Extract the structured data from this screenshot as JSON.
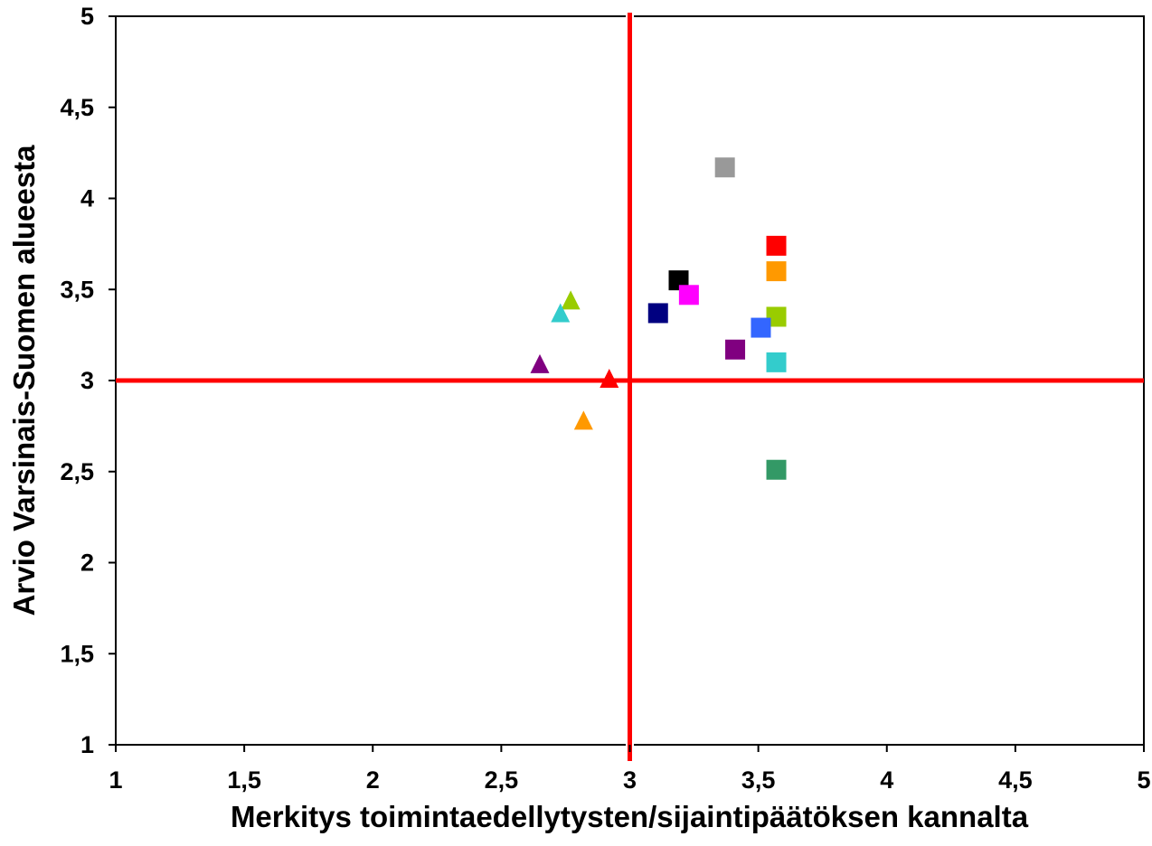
{
  "chart_data": {
    "type": "scatter",
    "title": "",
    "xlabel": "Merkitys toimintaedellytysten/sijaintipäätöksen kannalta",
    "ylabel": "Arvio Varsinais-Suomen alueesta",
    "xlim": [
      1,
      5
    ],
    "ylim": [
      1,
      5
    ],
    "grid": false,
    "legend": "none",
    "x_ticks": [
      {
        "value": 1,
        "label": "1"
      },
      {
        "value": 1.5,
        "label": "1,5"
      },
      {
        "value": 2,
        "label": "2"
      },
      {
        "value": 2.5,
        "label": "2,5"
      },
      {
        "value": 3,
        "label": "3"
      },
      {
        "value": 3.5,
        "label": "3,5"
      },
      {
        "value": 4,
        "label": "4"
      },
      {
        "value": 4.5,
        "label": "4,5"
      },
      {
        "value": 5,
        "label": "5"
      }
    ],
    "y_ticks": [
      {
        "value": 1,
        "label": "1"
      },
      {
        "value": 1.5,
        "label": "1,5"
      },
      {
        "value": 2,
        "label": "2"
      },
      {
        "value": 2.5,
        "label": "2,5"
      },
      {
        "value": 3,
        "label": "3"
      },
      {
        "value": 3.5,
        "label": "3,5"
      },
      {
        "value": 4,
        "label": "4"
      },
      {
        "value": 4.5,
        "label": "4,5"
      },
      {
        "value": 5,
        "label": "5"
      }
    ],
    "reference_lines": {
      "color": "#ff0000",
      "x": 3,
      "y": 3
    },
    "points": [
      {
        "x": 3.37,
        "y": 4.17,
        "shape": "square",
        "color": "#999999"
      },
      {
        "x": 3.57,
        "y": 3.74,
        "shape": "square",
        "color": "#ff0000"
      },
      {
        "x": 3.57,
        "y": 3.6,
        "shape": "square",
        "color": "#ff9900"
      },
      {
        "x": 3.19,
        "y": 3.55,
        "shape": "square",
        "color": "#000000"
      },
      {
        "x": 3.23,
        "y": 3.47,
        "shape": "square",
        "color": "#ff00ff"
      },
      {
        "x": 3.11,
        "y": 3.37,
        "shape": "square",
        "color": "#000080"
      },
      {
        "x": 3.57,
        "y": 3.35,
        "shape": "square",
        "color": "#99cc00"
      },
      {
        "x": 3.51,
        "y": 3.29,
        "shape": "square",
        "color": "#3366ff"
      },
      {
        "x": 3.41,
        "y": 3.17,
        "shape": "square",
        "color": "#800080"
      },
      {
        "x": 3.57,
        "y": 3.1,
        "shape": "square",
        "color": "#33cccc"
      },
      {
        "x": 3.57,
        "y": 2.51,
        "shape": "square",
        "color": "#339966"
      },
      {
        "x": 2.77,
        "y": 3.44,
        "shape": "triangle",
        "color": "#99cc00"
      },
      {
        "x": 2.73,
        "y": 3.37,
        "shape": "triangle",
        "color": "#33cccc"
      },
      {
        "x": 2.65,
        "y": 3.09,
        "shape": "triangle",
        "color": "#800080"
      },
      {
        "x": 2.92,
        "y": 3.01,
        "shape": "triangle",
        "color": "#ff0000"
      },
      {
        "x": 2.82,
        "y": 2.78,
        "shape": "triangle",
        "color": "#ff9900"
      }
    ]
  }
}
